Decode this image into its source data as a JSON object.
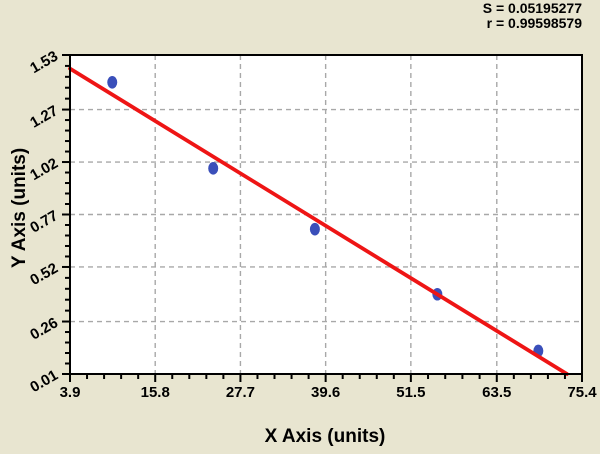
{
  "annotation": {
    "s_line": "S = 0.05195277",
    "r_line": "r = 0.99598579"
  },
  "chart_data": {
    "type": "scatter",
    "title": "",
    "xlabel": "X Axis (units)",
    "ylabel": "Y Axis (units)",
    "x_tick_labels": [
      "3.9",
      "15.8",
      "27.7",
      "39.6",
      "51.5",
      "63.5",
      "75.4"
    ],
    "y_tick_labels": [
      "0.01",
      "0.26",
      "0.52",
      "0.77",
      "1.02",
      "1.27",
      "1.53"
    ],
    "xlim": [
      3.9,
      75.4
    ],
    "ylim": [
      0.01,
      1.53
    ],
    "x_minor_divisions": 5,
    "y_minor_divisions": 5,
    "grid": "dashed",
    "legend": "none",
    "points": [
      {
        "x": 9.8,
        "y": 1.4
      },
      {
        "x": 23.9,
        "y": 0.99
      },
      {
        "x": 38.1,
        "y": 0.7
      },
      {
        "x": 55.2,
        "y": 0.39
      },
      {
        "x": 69.3,
        "y": 0.12
      }
    ],
    "fit_line": {
      "x1": 3.9,
      "y1": 1.465,
      "x2": 73.3,
      "y2": 0.01
    },
    "stats": {
      "S": "0.05195277",
      "r": "0.99598579"
    },
    "colors": {
      "background": "#e8e5d0",
      "plot_background": "#ffffff",
      "point": "#3a4fba",
      "line": "#ee1515",
      "grid": "#a8a8a8",
      "axis": "#000000",
      "text": "#000000"
    }
  }
}
